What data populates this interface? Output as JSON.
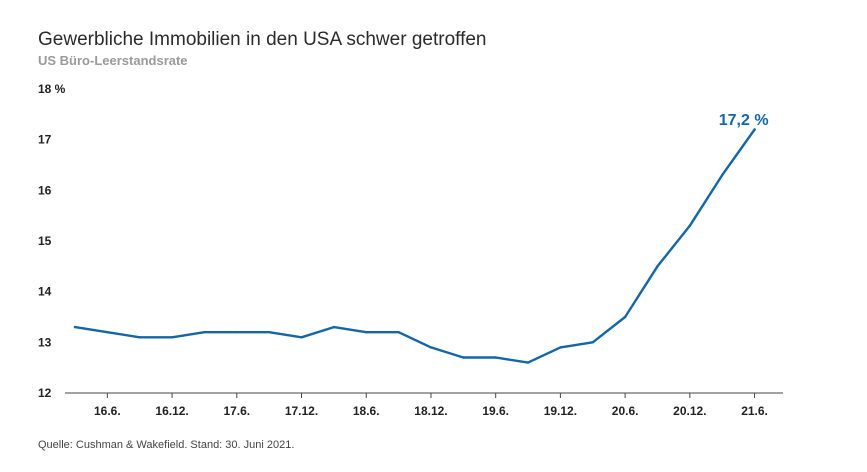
{
  "title": "Gewerbliche Immobilien in den USA schwer getroffen",
  "subtitle": "US Büro-Leerstandsrate",
  "source": "Quelle: Cushman & Wakefield. Stand: 30. Juni 2021.",
  "colors": {
    "line": "#1466a8",
    "axis": "#444444",
    "text": "#222222"
  },
  "chart_data": {
    "type": "line",
    "title": "Gewerbliche Immobilien in den USA schwer getroffen",
    "subtitle": "US Büro-Leerstandsrate",
    "ylim": [
      12,
      18
    ],
    "y_ticks": [
      12,
      13,
      14,
      15,
      16,
      17
    ],
    "y_top_label": "18 %",
    "x_tick_labels": [
      "16.6.",
      "16.12.",
      "17.6.",
      "17.12.",
      "18.6.",
      "18.12.",
      "19.6.",
      "19.12.",
      "20.6.",
      "20.12.",
      "21.6."
    ],
    "grid": false,
    "series": [
      {
        "x": [
          "16.3.",
          "16.6.",
          "16.9.",
          "16.12.",
          "17.3.",
          "17.6.",
          "17.9.",
          "17.12.",
          "18.3.",
          "18.6.",
          "18.9.",
          "18.12.",
          "19.3.",
          "19.6.",
          "19.9.",
          "19.12.",
          "20.3.",
          "20.6.",
          "20.9.",
          "20.12.",
          "21.3.",
          "21.6."
        ],
        "values": [
          13.3,
          13.2,
          13.1,
          13.1,
          13.2,
          13.2,
          13.2,
          13.1,
          13.3,
          13.2,
          13.2,
          12.9,
          12.7,
          12.7,
          12.6,
          12.9,
          13.0,
          13.5,
          14.5,
          15.3,
          16.3,
          17.2
        ]
      }
    ],
    "last_value_label": "17,2 %"
  }
}
